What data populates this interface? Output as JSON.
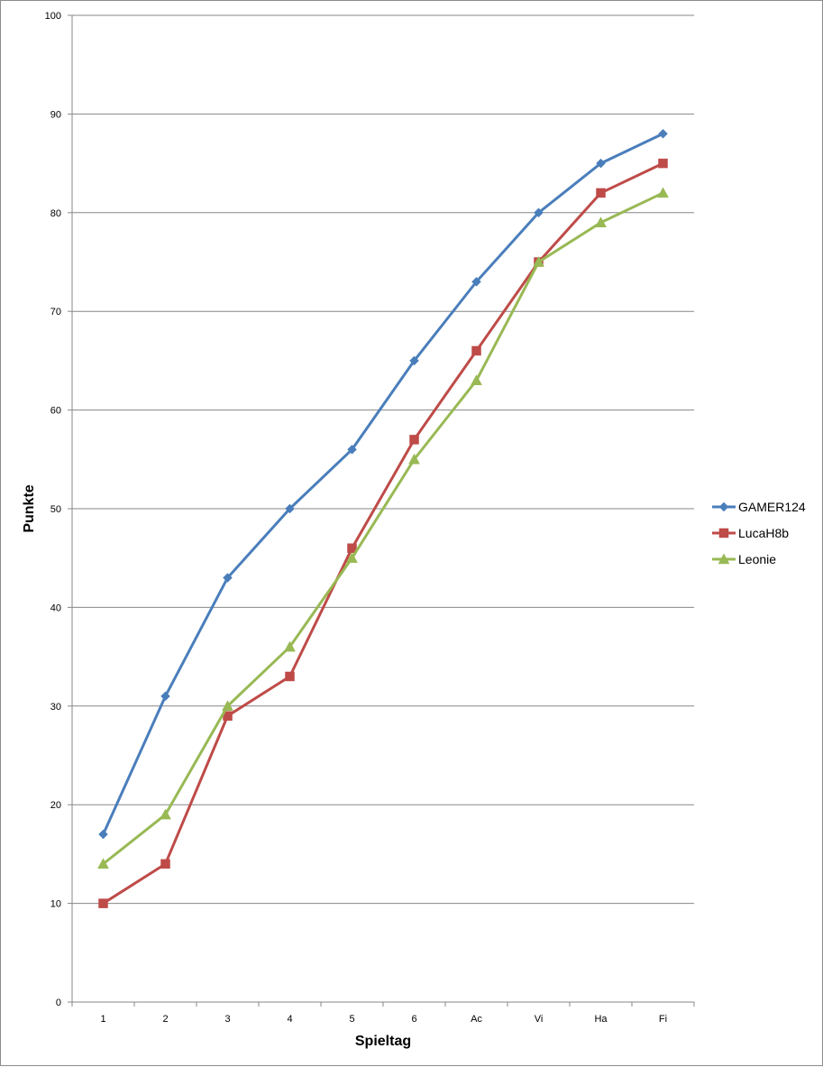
{
  "chart_data": {
    "type": "line",
    "title": "",
    "xlabel": "Spieltag",
    "ylabel": "Punkte",
    "categories": [
      "1",
      "2",
      "3",
      "4",
      "5",
      "6",
      "Ac",
      "Vi",
      "Ha",
      "Fi"
    ],
    "ylim": [
      0,
      100
    ],
    "yticks": [
      0,
      10,
      20,
      30,
      40,
      50,
      60,
      70,
      80,
      90,
      100
    ],
    "grid": "horizontal",
    "legend_position": "right",
    "series": [
      {
        "name": "GAMER124",
        "color": "#4a7ebb",
        "marker": "diamond",
        "values": [
          17,
          31,
          43,
          50,
          56,
          65,
          73,
          80,
          85,
          88
        ]
      },
      {
        "name": "LucaH8b",
        "color": "#be4b48",
        "marker": "square",
        "values": [
          10,
          14,
          29,
          33,
          46,
          57,
          66,
          75,
          82,
          85
        ]
      },
      {
        "name": "Leonie",
        "color": "#98b954",
        "marker": "triangle",
        "values": [
          14,
          19,
          30,
          36,
          45,
          55,
          63,
          75,
          79,
          82
        ]
      }
    ]
  }
}
